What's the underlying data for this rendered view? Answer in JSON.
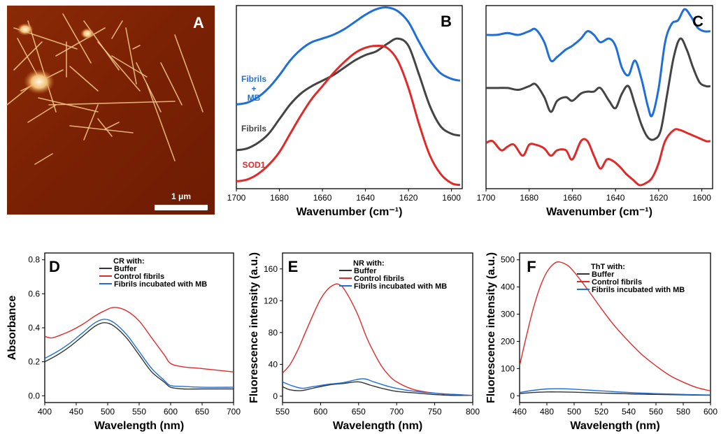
{
  "panels": {
    "A": {
      "letter": "A",
      "scalebar_label": "1 μm"
    },
    "B": {
      "letter": "B"
    },
    "C": {
      "letter": "C"
    },
    "D": {
      "letter": "D"
    },
    "E": {
      "letter": "E"
    },
    "F": {
      "letter": "F"
    }
  },
  "colors": {
    "mb": "#1f6fd6",
    "fibrils": "#444444",
    "sod1": "#e02a2a",
    "buffer": "#333333",
    "control": "#e02a2a",
    "incubated": "#1f6fd6"
  },
  "chart_data": [
    {
      "id": "B",
      "type": "line",
      "xlabel": "Wavenumber (cm⁻¹)",
      "ylabel": "",
      "xlim": [
        1700,
        1595
      ],
      "ylim": [
        0,
        1
      ],
      "xticks": [
        1700,
        1680,
        1660,
        1640,
        1620,
        1600
      ],
      "inline_labels": [
        "Fibrils",
        "+",
        "MB",
        "Fibrils",
        "SOD1"
      ],
      "series": [
        {
          "name": "Fibrils + MB",
          "color": "#1f6fd6",
          "x": [
            1700,
            1695,
            1690,
            1685,
            1680,
            1675,
            1670,
            1665,
            1660,
            1655,
            1650,
            1645,
            1640,
            1635,
            1630,
            1625,
            1620,
            1615,
            1610,
            1605,
            1600,
            1596
          ],
          "y": [
            0.46,
            0.47,
            0.5,
            0.55,
            0.62,
            0.7,
            0.76,
            0.8,
            0.82,
            0.84,
            0.87,
            0.91,
            0.95,
            0.98,
            0.99,
            0.97,
            0.91,
            0.8,
            0.7,
            0.63,
            0.6,
            0.59
          ]
        },
        {
          "name": "Fibrils",
          "color": "#444444",
          "x": [
            1700,
            1695,
            1690,
            1685,
            1680,
            1675,
            1670,
            1665,
            1660,
            1655,
            1650,
            1645,
            1640,
            1635,
            1630,
            1625,
            1620,
            1615,
            1610,
            1605,
            1600,
            1596
          ],
          "y": [
            0.21,
            0.22,
            0.25,
            0.3,
            0.38,
            0.46,
            0.52,
            0.56,
            0.59,
            0.62,
            0.66,
            0.7,
            0.73,
            0.75,
            0.79,
            0.82,
            0.78,
            0.62,
            0.45,
            0.34,
            0.3,
            0.29
          ]
        },
        {
          "name": "SOD1",
          "color": "#e02a2a",
          "x": [
            1700,
            1695,
            1690,
            1685,
            1680,
            1675,
            1670,
            1665,
            1660,
            1655,
            1650,
            1645,
            1640,
            1635,
            1630,
            1625,
            1620,
            1615,
            1610,
            1605,
            1600,
            1596
          ],
          "y": [
            0.04,
            0.05,
            0.08,
            0.13,
            0.2,
            0.3,
            0.4,
            0.49,
            0.56,
            0.63,
            0.69,
            0.74,
            0.77,
            0.78,
            0.77,
            0.7,
            0.55,
            0.35,
            0.18,
            0.08,
            0.03,
            0.02
          ]
        }
      ]
    },
    {
      "id": "C",
      "type": "line",
      "xlabel": "Wavenumber (cm⁻¹)",
      "ylabel": "",
      "xlim": [
        1700,
        1595
      ],
      "ylim": [
        0,
        1
      ],
      "xticks": [
        1700,
        1680,
        1660,
        1640,
        1620,
        1600
      ],
      "series": [
        {
          "name": "Fibrils + MB",
          "color": "#1f6fd6",
          "x": [
            1700,
            1695,
            1690,
            1685,
            1680,
            1677,
            1673,
            1670,
            1667,
            1663,
            1660,
            1656,
            1653,
            1650,
            1647,
            1643,
            1640,
            1637,
            1634,
            1631,
            1628,
            1625,
            1623,
            1620,
            1617,
            1614,
            1611,
            1608,
            1605,
            1602,
            1599,
            1596
          ],
          "y": [
            0.84,
            0.84,
            0.85,
            0.84,
            0.86,
            0.87,
            0.8,
            0.7,
            0.72,
            0.76,
            0.78,
            0.82,
            0.86,
            0.84,
            0.8,
            0.82,
            0.78,
            0.66,
            0.62,
            0.7,
            0.6,
            0.45,
            0.4,
            0.55,
            0.8,
            0.9,
            0.92,
            0.98,
            0.94,
            0.88,
            0.86,
            0.86
          ]
        },
        {
          "name": "Fibrils",
          "color": "#444444",
          "x": [
            1700,
            1695,
            1690,
            1685,
            1680,
            1677,
            1673,
            1670,
            1667,
            1663,
            1660,
            1656,
            1653,
            1650,
            1647,
            1643,
            1640,
            1637,
            1634,
            1631,
            1628,
            1625,
            1622,
            1619,
            1616,
            1613,
            1610,
            1607,
            1604,
            1601,
            1598,
            1596
          ],
          "y": [
            0.55,
            0.55,
            0.55,
            0.54,
            0.56,
            0.57,
            0.5,
            0.42,
            0.48,
            0.5,
            0.48,
            0.52,
            0.53,
            0.53,
            0.55,
            0.48,
            0.44,
            0.52,
            0.56,
            0.46,
            0.35,
            0.28,
            0.27,
            0.32,
            0.52,
            0.72,
            0.82,
            0.76,
            0.66,
            0.58,
            0.56,
            0.56
          ]
        },
        {
          "name": "SOD1",
          "color": "#e02a2a",
          "x": [
            1700,
            1697,
            1693,
            1690,
            1687,
            1683,
            1680,
            1677,
            1673,
            1670,
            1667,
            1663,
            1660,
            1656,
            1653,
            1650,
            1647,
            1644,
            1641,
            1638,
            1635,
            1632,
            1629,
            1626,
            1623,
            1620,
            1617,
            1613,
            1610,
            1606,
            1602,
            1598,
            1596
          ],
          "y": [
            0.25,
            0.26,
            0.21,
            0.23,
            0.24,
            0.18,
            0.24,
            0.24,
            0.22,
            0.18,
            0.21,
            0.21,
            0.16,
            0.26,
            0.26,
            0.18,
            0.11,
            0.16,
            0.15,
            0.12,
            0.08,
            0.05,
            0.02,
            0.03,
            0.06,
            0.14,
            0.26,
            0.32,
            0.32,
            0.3,
            0.28,
            0.26,
            0.26
          ]
        }
      ]
    },
    {
      "id": "D",
      "type": "line",
      "xlabel": "Wavelength (nm)",
      "ylabel": "Absorbance",
      "xlim": [
        400,
        700
      ],
      "ylim": [
        -0.04,
        0.84
      ],
      "xticks": [
        400,
        450,
        500,
        550,
        600,
        650,
        700
      ],
      "yticks": [
        "0.0",
        "0.2",
        "0.4",
        "0.6",
        "0.8"
      ],
      "legend_title": "CR with:",
      "legend_position": "top-center",
      "series": [
        {
          "name": "Buffer",
          "color": "#333333",
          "x": [
            400,
            420,
            440,
            460,
            480,
            495,
            510,
            530,
            550,
            570,
            590,
            600,
            620,
            650,
            700
          ],
          "y": [
            0.2,
            0.24,
            0.29,
            0.35,
            0.41,
            0.43,
            0.41,
            0.34,
            0.24,
            0.14,
            0.08,
            0.05,
            0.04,
            0.04,
            0.04
          ]
        },
        {
          "name": "Control fibrils",
          "color": "#e02a2a",
          "x": [
            400,
            410,
            420,
            440,
            460,
            480,
            495,
            510,
            530,
            550,
            570,
            590,
            600,
            620,
            650,
            700
          ],
          "y": [
            0.35,
            0.34,
            0.35,
            0.38,
            0.42,
            0.47,
            0.5,
            0.52,
            0.5,
            0.44,
            0.34,
            0.24,
            0.19,
            0.17,
            0.16,
            0.14
          ]
        },
        {
          "name": "Fibrils incubated with MB",
          "color": "#1f6fd6",
          "x": [
            400,
            420,
            440,
            460,
            480,
            495,
            510,
            530,
            550,
            570,
            590,
            600,
            620,
            650,
            700
          ],
          "y": [
            0.22,
            0.26,
            0.31,
            0.37,
            0.43,
            0.45,
            0.43,
            0.36,
            0.26,
            0.16,
            0.09,
            0.06,
            0.055,
            0.05,
            0.05
          ]
        }
      ]
    },
    {
      "id": "E",
      "type": "line",
      "xlabel": "Wavelength (nm)",
      "ylabel": "Fluorescence intensity (a.u.)",
      "xlim": [
        550,
        800
      ],
      "ylim": [
        -8,
        180
      ],
      "xticks": [
        550,
        600,
        650,
        700,
        750,
        800
      ],
      "yticks": [
        "0",
        "40",
        "80",
        "120",
        "160"
      ],
      "legend_title": "NR with:",
      "legend_position": "top-right",
      "series": [
        {
          "name": "Buffer",
          "color": "#333333",
          "x": [
            550,
            560,
            575,
            590,
            610,
            630,
            650,
            665,
            680,
            700,
            725,
            750,
            775,
            800
          ],
          "y": [
            12,
            8,
            7,
            10,
            14,
            16,
            18,
            14,
            10,
            6,
            4,
            2,
            1,
            1
          ]
        },
        {
          "name": "Control fibrils",
          "color": "#e02a2a",
          "x": [
            550,
            560,
            570,
            580,
            590,
            600,
            610,
            620,
            625,
            630,
            640,
            650,
            660,
            670,
            680,
            690,
            700,
            720,
            740,
            760,
            780,
            800
          ],
          "y": [
            29,
            40,
            58,
            80,
            102,
            122,
            135,
            141,
            140,
            136,
            120,
            100,
            75,
            55,
            38,
            26,
            18,
            9,
            5,
            3,
            2,
            1
          ]
        },
        {
          "name": "Fibrils incubated with MB",
          "color": "#1f6fd6",
          "x": [
            550,
            560,
            575,
            590,
            610,
            630,
            655,
            670,
            690,
            710,
            735,
            760,
            780,
            800
          ],
          "y": [
            18,
            14,
            10,
            12,
            15,
            17,
            22,
            18,
            12,
            8,
            5,
            3,
            2,
            1
          ]
        }
      ]
    },
    {
      "id": "F",
      "type": "line",
      "xlabel": "Wavelength (nm)",
      "ylabel": "Fluorescence intensity (a.u.)",
      "xlim": [
        460,
        600
      ],
      "ylim": [
        -25,
        525
      ],
      "xticks": [
        460,
        480,
        500,
        520,
        540,
        560,
        580,
        600
      ],
      "yticks": [
        "0",
        "100",
        "200",
        "300",
        "400",
        "500"
      ],
      "legend_title": "ThT with:",
      "legend_position": "top-right",
      "series": [
        {
          "name": "Buffer",
          "color": "#333333",
          "x": [
            460,
            470,
            480,
            490,
            500,
            520,
            540,
            560,
            580,
            600
          ],
          "y": [
            8,
            12,
            14,
            14,
            13,
            10,
            7,
            5,
            3,
            2
          ]
        },
        {
          "name": "Control fibrils",
          "color": "#e02a2a",
          "x": [
            460,
            465,
            470,
            475,
            480,
            485,
            489,
            495,
            500,
            510,
            520,
            530,
            540,
            550,
            560,
            570,
            580,
            590,
            600
          ],
          "y": [
            110,
            220,
            320,
            400,
            455,
            485,
            492,
            480,
            455,
            390,
            320,
            255,
            200,
            150,
            110,
            75,
            50,
            30,
            18
          ]
        },
        {
          "name": "Fibrils incubated with MB",
          "color": "#1f6fd6",
          "x": [
            460,
            470,
            480,
            488,
            500,
            520,
            540,
            560,
            580,
            600
          ],
          "y": [
            12,
            20,
            25,
            26,
            24,
            18,
            12,
            8,
            5,
            3
          ]
        }
      ]
    }
  ]
}
